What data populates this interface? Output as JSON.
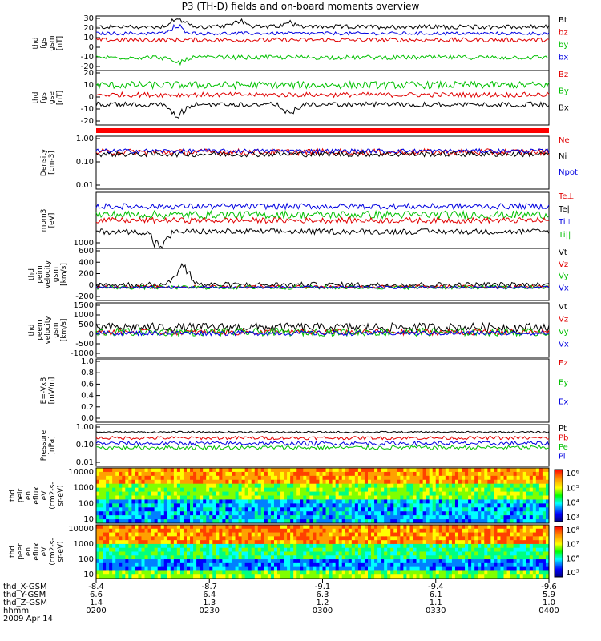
{
  "title": "P3 (TH-D) fields and on-board moments overview",
  "chart_data": {
    "type": "line",
    "panels": [
      {
        "ylabel": [
          "thd",
          "fgs",
          "gsm",
          "[nT]"
        ],
        "ticks": [
          "30",
          "20",
          "10",
          "0",
          "-10",
          "-20"
        ],
        "legend": [
          {
            "name": "Bt",
            "color": "#000000"
          },
          {
            "name": "bz",
            "color": "#e00000"
          },
          {
            "name": "by",
            "color": "#00c000"
          },
          {
            "name": "bx",
            "color": "#0000e0"
          }
        ],
        "ylim": [
          -20,
          30
        ],
        "series": [
          {
            "name": "Bt",
            "color": "#000000",
            "base": 20,
            "noise": 2,
            "dips": [
              [
                0.18,
                8
              ],
              [
                0.32,
                6
              ],
              [
                0.43,
                4
              ]
            ]
          },
          {
            "name": "bx",
            "color": "#0000e0",
            "base": 14,
            "noise": 1.5,
            "dips": [
              [
                0.18,
                6
              ]
            ]
          },
          {
            "name": "bz",
            "color": "#e00000",
            "base": 8,
            "noise": 2,
            "dips": []
          },
          {
            "name": "by",
            "color": "#00c000",
            "base": -8,
            "noise": 2,
            "dips": [
              [
                0.18,
                -6
              ]
            ]
          }
        ]
      },
      {
        "ylabel": [
          "thd",
          "fgs",
          "gse",
          "[nT]"
        ],
        "ticks": [
          "20",
          "10",
          "0",
          "-10",
          "-20"
        ],
        "legend": [
          {
            "name": "Bz",
            "color": "#e00000"
          },
          {
            "name": "By",
            "color": "#00c000"
          },
          {
            "name": "Bx",
            "color": "#000000"
          }
        ],
        "ylim": [
          -25,
          20
        ],
        "series": [
          {
            "name": "By",
            "color": "#00c000",
            "base": 8,
            "noise": 3,
            "dips": []
          },
          {
            "name": "Bz",
            "color": "#e00000",
            "base": 0,
            "noise": 2,
            "dips": []
          },
          {
            "name": "Bx",
            "color": "#000000",
            "base": -8,
            "noise": 2,
            "dips": [
              [
                0.18,
                -10
              ],
              [
                0.43,
                -6
              ]
            ]
          }
        ]
      },
      {
        "ylabel": [
          "Density",
          "[cm-3]"
        ],
        "ticks": [
          "1.00",
          "0.10",
          "0.01"
        ],
        "legend": [
          {
            "name": "Ne",
            "color": "#e00000"
          },
          {
            "name": "Ni",
            "color": "#000000"
          },
          {
            "name": "Npot",
            "color": "#0000e0"
          }
        ],
        "ylim": [
          0,
          1
        ],
        "series": [
          {
            "name": "Ne",
            "color": "#e00000",
            "base": 0.7,
            "noise": 0.06,
            "dips": []
          },
          {
            "name": "Ni",
            "color": "#000000",
            "base": 0.66,
            "noise": 0.05,
            "dips": []
          },
          {
            "name": "Npot",
            "color": "#0000e0",
            "base": 0.72,
            "noise": 0.04,
            "dips": []
          }
        ]
      },
      {
        "ylabel": [
          "mom3",
          "[eV]"
        ],
        "ticks": [
          "1000"
        ],
        "legend": [
          {
            "name": "Te⊥",
            "color": "#e00000"
          },
          {
            "name": "Te||",
            "color": "#000000"
          },
          {
            "name": "Ti⊥",
            "color": "#0000e0"
          },
          {
            "name": "Ti||",
            "color": "#00c000"
          }
        ],
        "ylim": [
          0,
          1
        ],
        "series": [
          {
            "name": "Ti⊥",
            "color": "#0000e0",
            "base": 0.75,
            "noise": 0.05,
            "dips": []
          },
          {
            "name": "Ti||",
            "color": "#00c000",
            "base": 0.6,
            "noise": 0.07,
            "dips": []
          },
          {
            "name": "Te⊥",
            "color": "#e00000",
            "base": 0.5,
            "noise": 0.05,
            "dips": []
          },
          {
            "name": "Te||",
            "color": "#000000",
            "base": 0.3,
            "noise": 0.05,
            "dips": [
              [
                0.14,
                -0.25
              ]
            ]
          }
        ]
      },
      {
        "ylabel": [
          "thd",
          "peim",
          "velocity",
          "gsm",
          "[km/s]"
        ],
        "ticks": [
          "600",
          "400",
          "200",
          "0",
          "-200"
        ],
        "legend": [
          {
            "name": "Vt",
            "color": "#000000"
          },
          {
            "name": "Vz",
            "color": "#e00000"
          },
          {
            "name": "Vy",
            "color": "#00c000"
          },
          {
            "name": "Vx",
            "color": "#0000e0"
          }
        ],
        "ylim": [
          -200,
          600
        ],
        "series": [
          {
            "name": "Vt",
            "color": "#000000",
            "base": 40,
            "noise": 40,
            "dips": [
              [
                0.19,
                350
              ]
            ]
          },
          {
            "name": "Vz",
            "color": "#e00000",
            "base": 10,
            "noise": 25,
            "dips": []
          },
          {
            "name": "Vy",
            "color": "#00c000",
            "base": 0,
            "noise": 30,
            "dips": []
          },
          {
            "name": "Vx",
            "color": "#0000e0",
            "base": 0,
            "noise": 20,
            "dips": []
          }
        ]
      },
      {
        "ylabel": [
          "thd",
          "peem",
          "velocity",
          "gsm",
          "[km/s]"
        ],
        "ticks": [
          "1500",
          "1000",
          "500",
          "0",
          "-500",
          "-1000"
        ],
        "legend": [
          {
            "name": "Vt",
            "color": "#000000"
          },
          {
            "name": "Vz",
            "color": "#e00000"
          },
          {
            "name": "Vy",
            "color": "#00c000"
          },
          {
            "name": "Vx",
            "color": "#0000e0"
          }
        ],
        "ylim": [
          -1300,
          1500
        ],
        "series": [
          {
            "name": "Vt",
            "color": "#000000",
            "base": 250,
            "noise": 220,
            "dips": []
          },
          {
            "name": "Vz",
            "color": "#e00000",
            "base": 0,
            "noise": 150,
            "dips": []
          },
          {
            "name": "Vy",
            "color": "#00c000",
            "base": 0,
            "noise": 200,
            "dips": []
          },
          {
            "name": "Vx",
            "color": "#0000e0",
            "base": -50,
            "noise": 120,
            "dips": []
          }
        ]
      },
      {
        "ylabel": [
          "E=-VxB",
          "[mV/m]"
        ],
        "ticks": [
          "1.0",
          "0.8",
          "0.6",
          "0.4",
          "0.2",
          "0.0"
        ],
        "legend": [
          {
            "name": "Ez",
            "color": "#e00000"
          },
          {
            "name": "Ey",
            "color": "#00c000"
          },
          {
            "name": "Ex",
            "color": "#0000e0"
          }
        ],
        "ylim": [
          0,
          1
        ],
        "series": []
      },
      {
        "ylabel": [
          "Pressure",
          "[nPa]"
        ],
        "ticks": [
          "1.00",
          "0.10",
          "0.01"
        ],
        "legend": [
          {
            "name": "Pt",
            "color": "#000000"
          },
          {
            "name": "Pb",
            "color": "#e00000"
          },
          {
            "name": "Pe",
            "color": "#00c000"
          },
          {
            "name": "Pi",
            "color": "#0000e0"
          }
        ],
        "ylim": [
          0,
          1
        ],
        "series": [
          {
            "name": "Pt",
            "color": "#000000",
            "base": 0.82,
            "noise": 0.02,
            "dips": []
          },
          {
            "name": "Pb",
            "color": "#e00000",
            "base": 0.68,
            "noise": 0.04,
            "dips": []
          },
          {
            "name": "Pi",
            "color": "#0000e0",
            "base": 0.55,
            "noise": 0.05,
            "dips": []
          },
          {
            "name": "Pe",
            "color": "#00c000",
            "base": 0.45,
            "noise": 0.05,
            "dips": []
          }
        ]
      }
    ],
    "spectrograms": [
      {
        "ylabel": [
          "thd",
          "peir",
          "en",
          "eflux",
          "eV",
          "(cm2-s-",
          "sr-eV)"
        ],
        "ticks": [
          "10000",
          "1000",
          "100",
          "10"
        ],
        "colorbar": [
          "10⁶",
          "10⁵",
          "10⁴",
          "10³"
        ]
      },
      {
        "ylabel": [
          "thd",
          "peer",
          "en",
          "eflux",
          "eV",
          "(cm2-s-",
          "sr-eV)"
        ],
        "ticks": [
          "10000",
          "1000",
          "100",
          "10"
        ],
        "colorbar": [
          "10⁸",
          "10⁷",
          "10⁶",
          "10⁵"
        ]
      }
    ],
    "x_rows": [
      {
        "label": "thd_X-GSM",
        "values": [
          "-8.4",
          "-8.7",
          "-9.1",
          "-9.4",
          "-9.6"
        ]
      },
      {
        "label": "thd_Y-GSM",
        "values": [
          "6.6",
          "6.4",
          "6.3",
          "6.1",
          "5.9"
        ]
      },
      {
        "label": "thd_Z-GSM",
        "values": [
          "1.4",
          "1.3",
          "1.2",
          "1.1",
          "1.0"
        ]
      },
      {
        "label": "hhmm",
        "values": [
          "0200",
          "0230",
          "0300",
          "0330",
          "0400"
        ]
      }
    ],
    "date": "2009 Apr 14"
  }
}
